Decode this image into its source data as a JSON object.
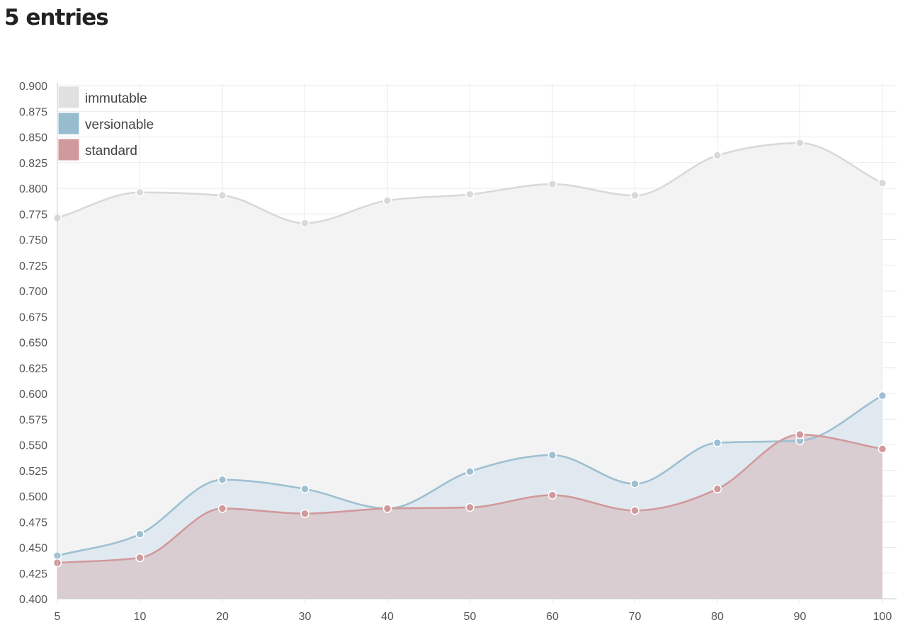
{
  "heading": "5 entries",
  "chart_data": {
    "type": "area",
    "title": "5 entries",
    "x": [
      5,
      10,
      20,
      30,
      40,
      50,
      60,
      70,
      80,
      90,
      100
    ],
    "x_tick_labels": [
      "5",
      "10",
      "20",
      "30",
      "40",
      "50",
      "60",
      "70",
      "80",
      "90",
      "100"
    ],
    "x_spacing": "categorical-even",
    "ylim": [
      0.4,
      0.9
    ],
    "y_tick_labels": [
      "0.900",
      "0.875",
      "0.850",
      "0.825",
      "0.800",
      "0.775",
      "0.750",
      "0.725",
      "0.700",
      "0.675",
      "0.650",
      "0.625",
      "0.600",
      "0.575",
      "0.550",
      "0.525",
      "0.500",
      "0.475",
      "0.450",
      "0.425",
      "0.400"
    ],
    "grid": true,
    "curve": "smooth",
    "legend_position": "top-left",
    "series": [
      {
        "name": "immutable",
        "color": "#e0e0e0",
        "line_color": "#d9d9d9",
        "fill_color": "#f3f3f3",
        "values": [
          0.771,
          0.796,
          0.793,
          0.766,
          0.788,
          0.794,
          0.804,
          0.793,
          0.832,
          0.844,
          0.805
        ]
      },
      {
        "name": "versionable",
        "color": "#98bccf",
        "line_color": "#9ec0d2",
        "fill_color": "#dce6ee",
        "values": [
          0.442,
          0.463,
          0.516,
          0.507,
          0.488,
          0.524,
          0.54,
          0.512,
          0.552,
          0.554,
          0.598
        ]
      },
      {
        "name": "standard",
        "color": "#d09a9c",
        "line_color": "#d1999b",
        "fill_color": "#d7c8cc",
        "values": [
          0.435,
          0.44,
          0.488,
          0.483,
          0.488,
          0.489,
          0.501,
          0.486,
          0.507,
          0.56,
          0.546
        ]
      }
    ]
  }
}
